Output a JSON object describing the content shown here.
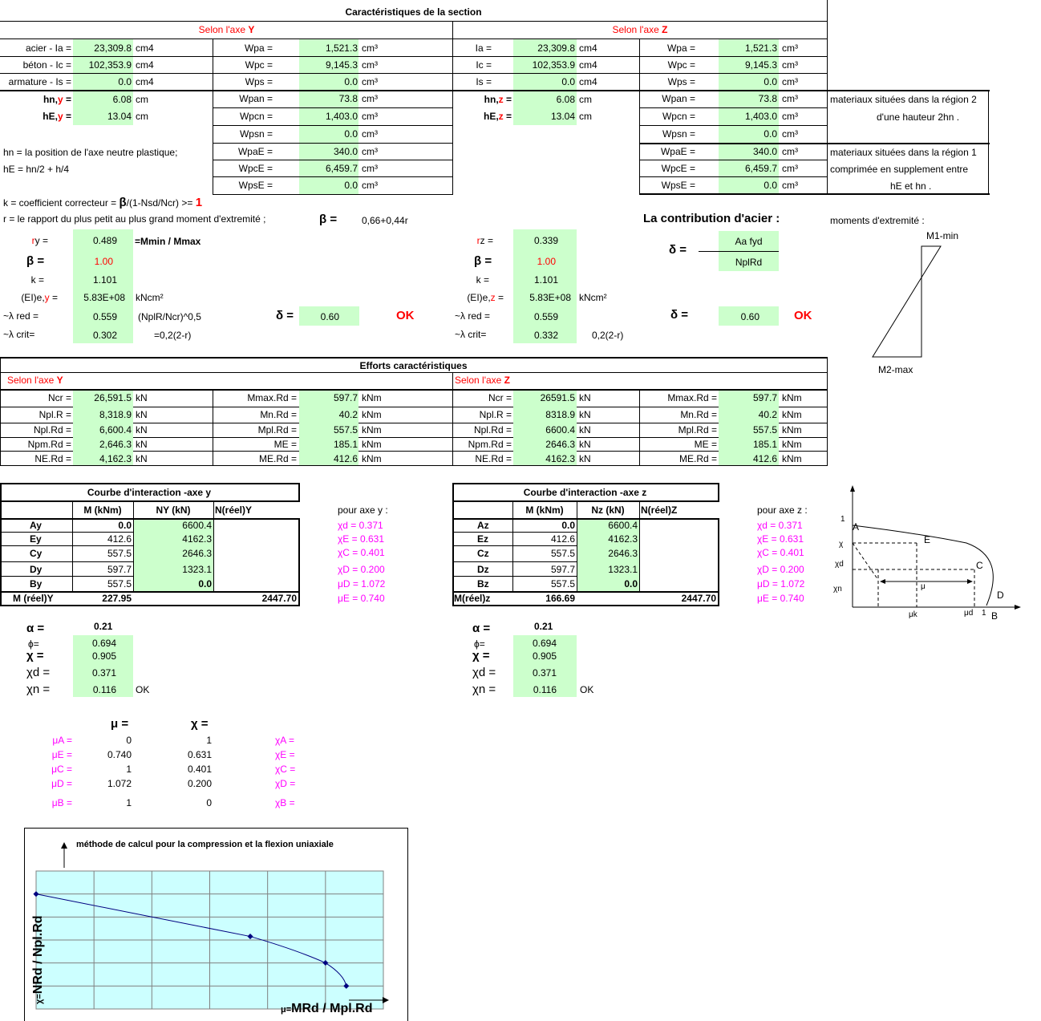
{
  "section": {
    "title": "Caractéristiques de la section",
    "axis_y_title_prefix": "Selon l'axe ",
    "axis_y_letter": "Y",
    "axis_z_title_prefix": "Selon l'axe ",
    "axis_z_letter": "Z",
    "y": {
      "rows": [
        {
          "label": "acier - Ia =",
          "value": "23,309.8",
          "unit": "cm4"
        },
        {
          "label": "béton - Ic =",
          "value": "102,353.9",
          "unit": "cm4"
        },
        {
          "label": "armature - Is =",
          "value": "0.0",
          "unit": "cm4"
        }
      ],
      "hn_label_a": "hn,",
      "hn_label_b": "y",
      "hn_label_c": " =",
      "hn_value": "6.08",
      "hn_unit": "cm",
      "hE_label_a": "hE,",
      "hE_label_b": "y",
      "hE_label_c": " =",
      "hE_value": "13.04",
      "hE_unit": "cm",
      "w": [
        {
          "label": "Wpa =",
          "value": "1,521.3",
          "unit": "cm³"
        },
        {
          "label": "Wpc =",
          "value": "9,145.3",
          "unit": "cm³"
        },
        {
          "label": "Wps =",
          "value": "0.0",
          "unit": "cm³"
        },
        {
          "label": "Wpan =",
          "value": "73.8",
          "unit": "cm³"
        },
        {
          "label": "Wpcn =",
          "value": "1,403.0",
          "unit": "cm³"
        },
        {
          "label": "Wpsn =",
          "value": "0.0",
          "unit": "cm³"
        },
        {
          "label": "WpaE =",
          "value": "340.0",
          "unit": "cm³"
        },
        {
          "label": "WpcE =",
          "value": "6,459.7",
          "unit": "cm³"
        },
        {
          "label": "WpsE =",
          "value": "0.0",
          "unit": "cm³"
        }
      ]
    },
    "z": {
      "rows": [
        {
          "label": "Ia =",
          "value": "23,309.8",
          "unit": "cm4"
        },
        {
          "label": "Ic =",
          "value": "102,353.9",
          "unit": "cm4"
        },
        {
          "label": "Is =",
          "value": "0.0",
          "unit": "cm4"
        }
      ],
      "hn_label_a": "hn,",
      "hn_label_b": "z",
      "hn_label_c": " =",
      "hn_value": "6.08",
      "hn_unit": "cm",
      "hE_label_a": "hE,",
      "hE_label_b": "z",
      "hE_label_c": " =",
      "hE_value": "13.04",
      "hE_unit": "cm",
      "w": [
        {
          "label": "Wpa =",
          "value": "1,521.3",
          "unit": "cm³"
        },
        {
          "label": "Wpc =",
          "value": "9,145.3",
          "unit": "cm³"
        },
        {
          "label": "Wps =",
          "value": "0.0",
          "unit": "cm³"
        },
        {
          "label": "Wpan =",
          "value": "73.8",
          "unit": "cm³"
        },
        {
          "label": "Wpcn =",
          "value": "1,403.0",
          "unit": "cm³"
        },
        {
          "label": "Wpsn =",
          "value": "0.0",
          "unit": "cm³"
        },
        {
          "label": "WpaE =",
          "value": "340.0",
          "unit": "cm³"
        },
        {
          "label": "WpcE =",
          "value": "6,459.7",
          "unit": "cm³"
        },
        {
          "label": "WpsE =",
          "value": "0.0",
          "unit": "cm³"
        }
      ]
    },
    "note_hn": "hn = la position de l'axe neutre plastique;",
    "note_hE": "hE = hn/2 + h/4",
    "note_region2_a": "materiaux situées dans la région 2",
    "note_region2_b": "d'une hauteur 2hn .",
    "note_region1_a": "materiaux situées dans la région 1",
    "note_region1_b": "comprimée en supplement entre",
    "note_region1_c": "hE et hn ."
  },
  "coef": {
    "k_text_a": "k = coefficient correcteur = ",
    "k_text_beta": "β",
    "k_text_b": "/(1-Nsd/Ncr) >= ",
    "k_text_one": "1",
    "r_text": "r = le rapport du plus petit au plus grand moment d'extremité ;",
    "beta_sym": "β =",
    "beta_formula": "0,66+0,44r",
    "contribution": "La contribution d'acier :",
    "moments_title": "moments d'extremité :",
    "m1": "M1-min",
    "m2": "M2-max",
    "delta_sym": "δ =",
    "delta_num": "Aa fyd",
    "delta_den": "NplRd",
    "y": {
      "r_label_a": "r",
      "r_label_b": "y =",
      "r_value": "0.489",
      "r_note": "=Mmin / Mmax",
      "beta_value": "1.00",
      "k_label": "k =",
      "k_value": "1.101",
      "ei_label_a": "(EI)e,",
      "ei_label_b": "y",
      "ei_label_c": " =",
      "ei_value": "5.83E+08",
      "ei_unit": "kNcm²",
      "lred_label": "~λ red =",
      "lred_value": "0.559",
      "lred_note": "(NplR/Ncr)^0,5",
      "lcrit_label": "~λ crit=",
      "lcrit_value": "0.302",
      "lcrit_note": "=0,2(2-r)",
      "delta_label": "δ =",
      "delta_value": "0.60",
      "ok": "OK"
    },
    "z": {
      "r_label_a": "r",
      "r_label_b": "z =",
      "r_value": "0.339",
      "beta_value": "1.00",
      "k_label": "k =",
      "k_value": "1.101",
      "ei_label_a": "(EI)e,",
      "ei_label_b": "z",
      "ei_label_c": " =",
      "ei_value": "5.83E+08",
      "ei_unit": "kNcm²",
      "lred_label": "~λ red =",
      "lred_value": "0.559",
      "lcrit_label": "~λ crit=",
      "lcrit_value": "0.332",
      "lcrit_note": "0,2(2-r)",
      "delta_label": "δ =",
      "delta_value": "0.60",
      "ok": "OK"
    }
  },
  "efforts": {
    "title": "Efforts caractéristiques",
    "y_title": "Selon l'axe ",
    "y_letter": "Y",
    "z_title": "Selon l'axe ",
    "z_letter": "Z",
    "y": {
      "left": [
        {
          "label": "Ncr =",
          "value": "26,591.5",
          "unit": "kN"
        },
        {
          "label": "Npl.R =",
          "value": "8,318.9",
          "unit": "kN"
        },
        {
          "label": "Npl.Rd =",
          "value": "6,600.4",
          "unit": "kN"
        },
        {
          "label": "Npm.Rd =",
          "value": "2,646.3",
          "unit": "kN"
        },
        {
          "label": "NE.Rd =",
          "value": "4,162.3",
          "unit": "kN"
        }
      ],
      "right": [
        {
          "label": "Mmax.Rd =",
          "value": "597.7",
          "unit": "kNm"
        },
        {
          "label": "Mn.Rd =",
          "value": "40.2",
          "unit": "kNm"
        },
        {
          "label": "Mpl.Rd =",
          "value": "557.5",
          "unit": "kNm"
        },
        {
          "label": "ME =",
          "value": "185.1",
          "unit": "kNm"
        },
        {
          "label": "ME.Rd =",
          "value": "412.6",
          "unit": "kNm"
        }
      ]
    },
    "z": {
      "left": [
        {
          "label": "Ncr =",
          "value": "26591.5",
          "unit": "kN"
        },
        {
          "label": "Npl.R =",
          "value": "8318.9",
          "unit": "kN"
        },
        {
          "label": "Npl.Rd =",
          "value": "6600.4",
          "unit": "kN"
        },
        {
          "label": "Npm.Rd =",
          "value": "2646.3",
          "unit": "kN"
        },
        {
          "label": "NE.Rd =",
          "value": "4162.3",
          "unit": "kN"
        }
      ],
      "right": [
        {
          "label": "Mmax.Rd =",
          "value": "597.7",
          "unit": "kNm"
        },
        {
          "label": "Mn.Rd =",
          "value": "40.2",
          "unit": "kNm"
        },
        {
          "label": "Mpl.Rd =",
          "value": "557.5",
          "unit": "kNm"
        },
        {
          "label": "ME =",
          "value": "185.1",
          "unit": "kNm"
        },
        {
          "label": "ME.Rd =",
          "value": "412.6",
          "unit": "kNm"
        }
      ]
    }
  },
  "courbe": {
    "y": {
      "title": "Courbe d'interaction -axe y",
      "headers": [
        "M (kNm)",
        "NY (kN)",
        "N(réel)Y"
      ],
      "rows": [
        {
          "label": "Ay",
          "m": "0.0",
          "n": "6600.4"
        },
        {
          "label": "Ey",
          "m": "412.6",
          "n": "4162.3"
        },
        {
          "label": "Cy",
          "m": "557.5",
          "n": "2646.3"
        },
        {
          "label": "Dy",
          "m": "597.7",
          "n": "1323.1"
        },
        {
          "label": "By",
          "m": "557.5",
          "n": "0.0"
        }
      ],
      "mreel_label": "M (réel)Y",
      "mreel_value": "227.95",
      "nreel_value": "2447.70",
      "pour": "pour axe y :",
      "chi": [
        "χd = 0.371",
        "χE = 0.631",
        "χC = 0.401",
        "χD = 0.200",
        "μD = 1.072",
        "μE = 0.740"
      ]
    },
    "z": {
      "title": "Courbe d'interaction -axe z",
      "headers": [
        "M (kNm)",
        "Nz (kN)",
        "N(réel)Z"
      ],
      "rows": [
        {
          "label": "Az",
          "m": "0.0",
          "n": "6600.4"
        },
        {
          "label": "Ez",
          "m": "412.6",
          "n": "4162.3"
        },
        {
          "label": "Cz",
          "m": "557.5",
          "n": "2646.3"
        },
        {
          "label": "Dz",
          "m": "597.7",
          "n": "1323.1"
        },
        {
          "label": "Bz",
          "m": "557.5",
          "n": "0.0"
        }
      ],
      "mreel_label": "M(réel)z",
      "mreel_value": "166.69",
      "nreel_value": "2447.70",
      "pour": "pour axe z :",
      "chi": [
        "χd = 0.371",
        "χE = 0.631",
        "χC = 0.401",
        "χD = 0.200",
        "μD = 1.072",
        "μE = 0.740"
      ]
    },
    "sketch": {
      "one": "1",
      "A": "A",
      "E": "E",
      "chi": "χ",
      "chid": "χd",
      "C": "C",
      "chin": "χn",
      "mu": "μ",
      "D": "D",
      "muk": "μk",
      "mud": "μd",
      "one_b": "1",
      "B": "B"
    }
  },
  "alpha": {
    "y": {
      "alpha_label": "α =",
      "alpha_value": "0.21",
      "phi_label": "ϕ=",
      "phi_value": "0.694",
      "chi_label": "χ =",
      "chi_value": "0.905",
      "chid_label": "χd =",
      "chid_value": "0.371",
      "chin_label": "χn =",
      "chin_value": "0.116",
      "ok": "OK"
    },
    "z": {
      "alpha_label": "α =",
      "alpha_value": "0.21",
      "phi_label": "ϕ=",
      "phi_value": "0.694",
      "chi_label": "χ =",
      "chi_value": "0.905",
      "chid_label": "χd =",
      "chid_value": "0.371",
      "chin_label": "χn =",
      "chin_value": "0.116",
      "ok": "OK"
    }
  },
  "mu_chi": {
    "mu_header": "μ =",
    "chi_header": "χ =",
    "rows": [
      {
        "mu_label": "μA =",
        "mu": "0",
        "chi": "1",
        "chi_label": "χA ="
      },
      {
        "mu_label": "μE =",
        "mu": "0.740",
        "chi": "0.631",
        "chi_label": "χE ="
      },
      {
        "mu_label": "μC =",
        "mu": "1",
        "chi": "0.401",
        "chi_label": "χC ="
      },
      {
        "mu_label": "μD =",
        "mu": "1.072",
        "chi": "0.200",
        "chi_label": "χD ="
      },
      {
        "mu_label": "μB =",
        "mu": "1",
        "chi": "0",
        "chi_label": "χB ="
      }
    ]
  },
  "chart_data": {
    "type": "line",
    "title": "méthode de calcul pour la compression et la flexion uniaxiale",
    "xlabel_a": "μ=",
    "xlabel_b": "MRd / Mpl.Rd",
    "ylabel_a": "χ=",
    "ylabel_b": "NRd / Npl.Rd",
    "x": [
      0,
      0.74,
      1,
      1.072
    ],
    "y": [
      1,
      0.631,
      0.401,
      0.2
    ],
    "xlim": [
      0,
      1.2
    ],
    "ylim": [
      0,
      1.2
    ],
    "grid": true,
    "background": "#ccffff",
    "line_color": "#000080"
  }
}
